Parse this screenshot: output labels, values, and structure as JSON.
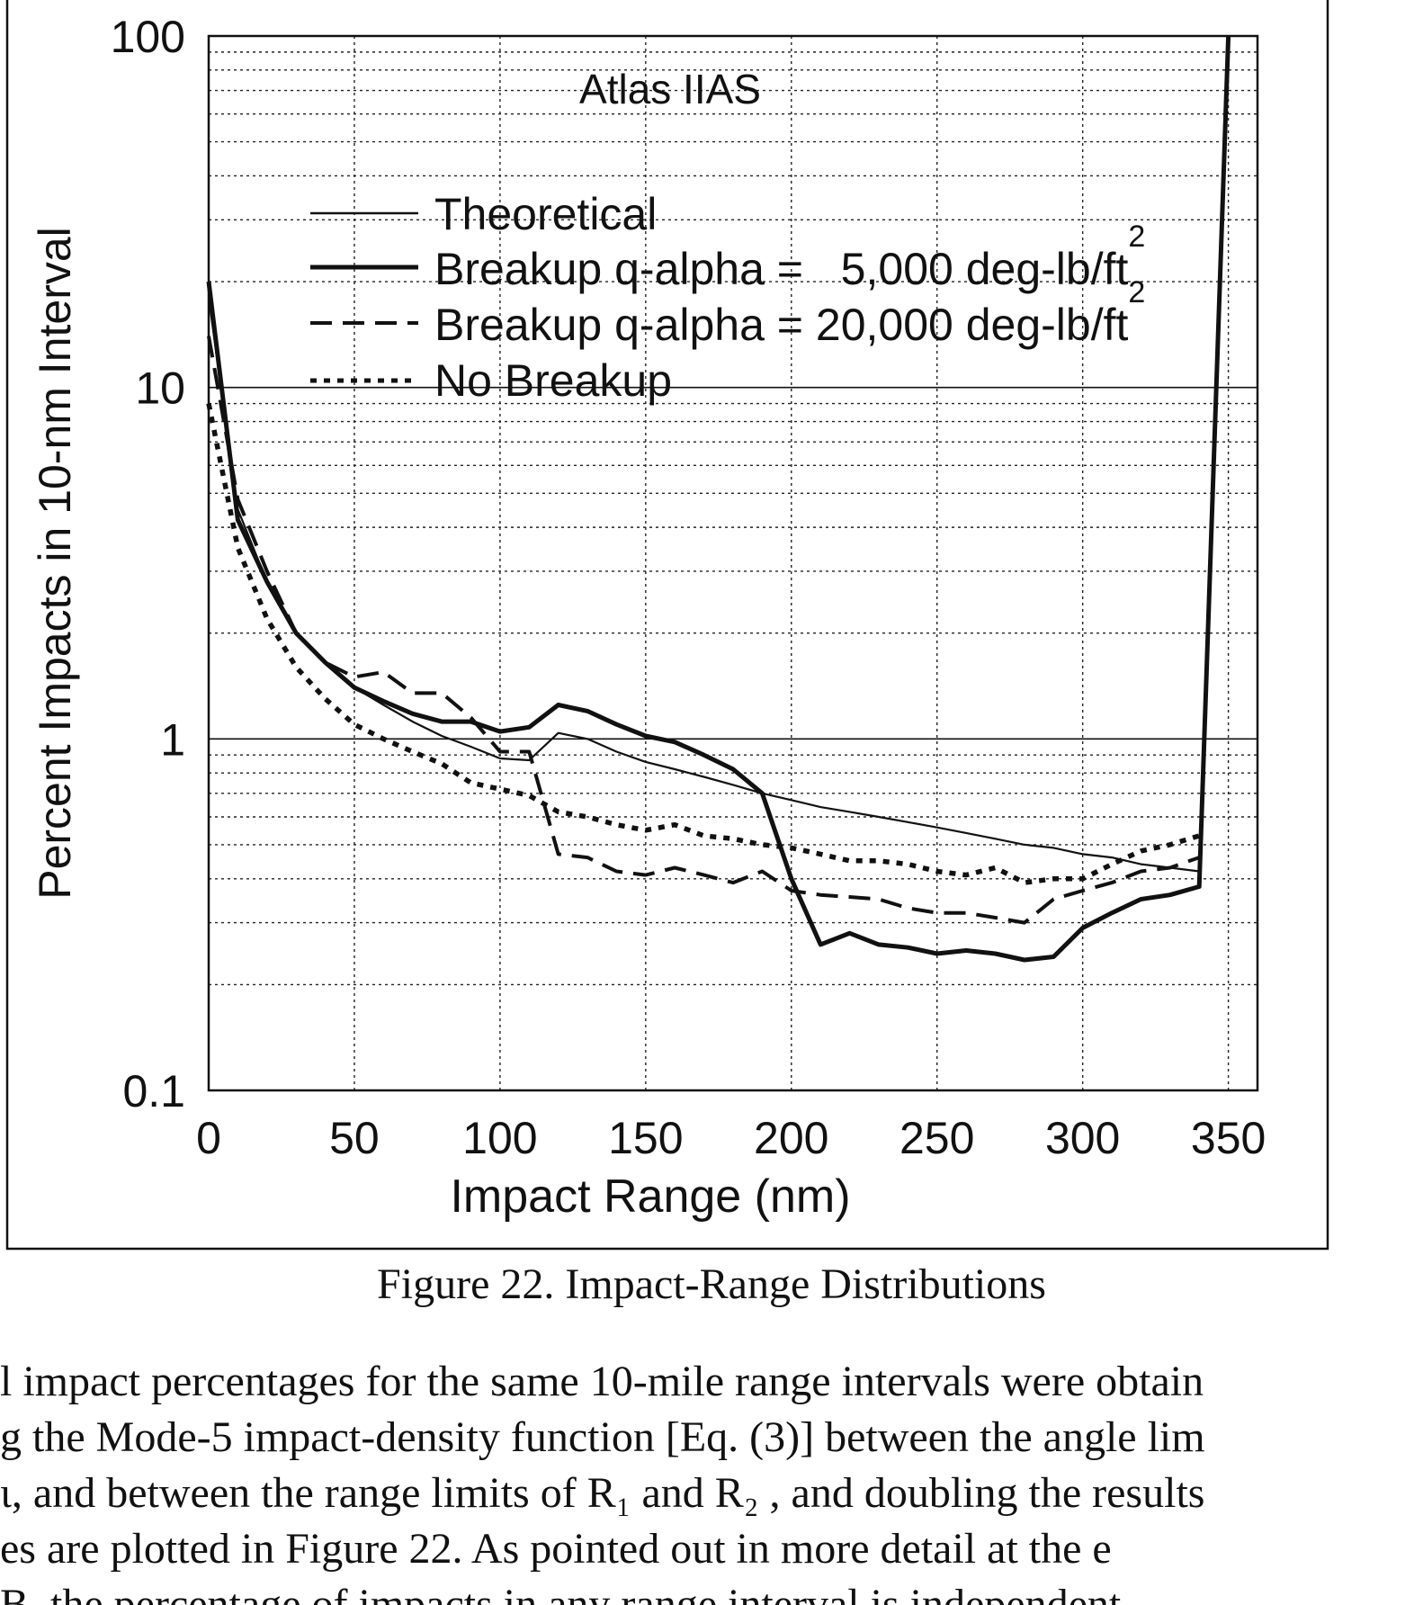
{
  "chart_data": {
    "type": "line",
    "title": "Atlas IIAS",
    "xlabel": "Impact Range (nm)",
    "ylabel": "Percent Impacts in 10-nm Interval",
    "xlim": [
      0,
      360
    ],
    "ylim": [
      0.1,
      100
    ],
    "yscale": "log",
    "xticks": [
      "0",
      "50",
      "100",
      "150",
      "200",
      "250",
      "300",
      "350"
    ],
    "yticks": [
      "0.1",
      "1",
      "10",
      "100"
    ],
    "grid": true,
    "legend_position": "upper-left",
    "series": [
      {
        "name": "Theoretical",
        "style": "thin-solid",
        "x": [
          0,
          10,
          20,
          30,
          40,
          50,
          60,
          70,
          80,
          90,
          100,
          110,
          120,
          130,
          140,
          150,
          160,
          170,
          180,
          190,
          200,
          210,
          220,
          230,
          240,
          250,
          260,
          270,
          280,
          290,
          300,
          310,
          320,
          330,
          340
        ],
        "y": [
          18,
          4.5,
          2.8,
          2.0,
          1.65,
          1.4,
          1.25,
          1.12,
          1.02,
          0.95,
          0.88,
          0.87,
          1.04,
          1.0,
          0.92,
          0.86,
          0.82,
          0.78,
          0.74,
          0.7,
          0.67,
          0.64,
          0.62,
          0.6,
          0.58,
          0.56,
          0.54,
          0.52,
          0.5,
          0.49,
          0.47,
          0.46,
          0.44,
          0.43,
          0.42
        ]
      },
      {
        "name": "Breakup q-alpha = 5,000 deg-lb/ft2",
        "style": "thick-solid",
        "x": [
          0,
          10,
          20,
          30,
          40,
          50,
          60,
          70,
          80,
          90,
          100,
          110,
          120,
          130,
          140,
          150,
          160,
          170,
          180,
          190,
          200,
          210,
          220,
          230,
          240,
          250,
          260,
          270,
          280,
          290,
          300,
          310,
          320,
          330,
          340,
          350
        ],
        "y": [
          20,
          4.2,
          2.8,
          2.0,
          1.65,
          1.4,
          1.28,
          1.18,
          1.12,
          1.12,
          1.05,
          1.08,
          1.25,
          1.2,
          1.1,
          1.02,
          0.98,
          0.9,
          0.82,
          0.7,
          0.4,
          0.26,
          0.28,
          0.26,
          0.255,
          0.245,
          0.25,
          0.245,
          0.235,
          0.24,
          0.29,
          0.32,
          0.35,
          0.36,
          0.38,
          100
        ]
      },
      {
        "name": "Breakup q-alpha = 20,000 deg-lb/ft2",
        "style": "dashed",
        "x": [
          0,
          10,
          20,
          30,
          40,
          50,
          60,
          70,
          80,
          90,
          100,
          110,
          120,
          130,
          140,
          150,
          160,
          170,
          180,
          190,
          200,
          210,
          220,
          230,
          240,
          250,
          260,
          270,
          280,
          290,
          300,
          310,
          320,
          330,
          340
        ],
        "y": [
          14,
          4.8,
          3.0,
          2.0,
          1.65,
          1.5,
          1.55,
          1.35,
          1.35,
          1.15,
          0.92,
          0.92,
          0.47,
          0.46,
          0.42,
          0.41,
          0.43,
          0.41,
          0.39,
          0.42,
          0.37,
          0.36,
          0.355,
          0.35,
          0.33,
          0.32,
          0.32,
          0.31,
          0.3,
          0.35,
          0.37,
          0.39,
          0.42,
          0.43,
          0.46
        ]
      },
      {
        "name": "No Breakup",
        "style": "dotted",
        "x": [
          0,
          10,
          20,
          30,
          40,
          50,
          60,
          70,
          80,
          90,
          100,
          110,
          120,
          130,
          140,
          150,
          160,
          170,
          180,
          190,
          200,
          210,
          220,
          230,
          240,
          250,
          260,
          270,
          280,
          290,
          300,
          310,
          320,
          330,
          340
        ],
        "y": [
          9,
          3.5,
          2.2,
          1.6,
          1.3,
          1.1,
          1.0,
          0.92,
          0.85,
          0.75,
          0.72,
          0.69,
          0.62,
          0.6,
          0.57,
          0.55,
          0.57,
          0.53,
          0.52,
          0.5,
          0.49,
          0.47,
          0.45,
          0.45,
          0.44,
          0.42,
          0.41,
          0.43,
          0.39,
          0.4,
          0.4,
          0.44,
          0.48,
          0.5,
          0.53
        ]
      }
    ]
  },
  "legend": {
    "theoretical": "Theoretical",
    "breakup5k_prefix": "Breakup q-alpha =   5,000 deg-lb/ft",
    "breakup20k_prefix": "Breakup q-alpha = 20,000 deg-lb/ft",
    "superscript": "2",
    "no_breakup": "No Breakup"
  },
  "caption": "Figure 22. Impact-Range Distributions",
  "body_lines": [
    "l impact percentages for the same 10-mile range intervals were obtain",
    "g the Mode-5 impact-density function [Eq. (3)] between the angle lim",
    "ι, and between the range limits of R₁ and R₂ , and doubling the results",
    "es are plotted in Figure 22.  As pointed out in more detail at the e",
    " B, the percentage of impacts in any range interval is independent"
  ]
}
